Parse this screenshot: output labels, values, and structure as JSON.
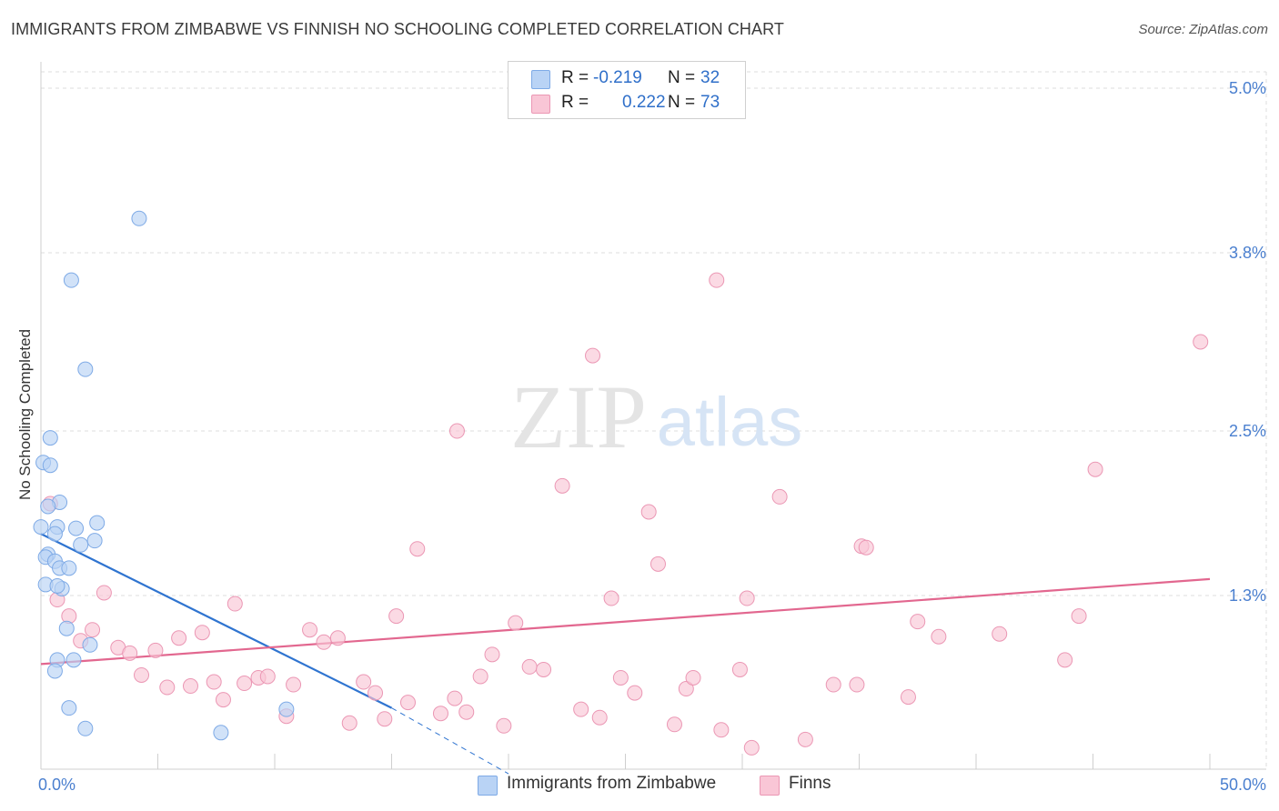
{
  "header": {
    "title": "IMMIGRANTS FROM ZIMBABWE VS FINNISH NO SCHOOLING COMPLETED CORRELATION CHART",
    "source": "Source: ZipAtlas.com"
  },
  "watermark": {
    "zip": "ZIP",
    "atlas": "atlas"
  },
  "stats_legend": [
    {
      "r_label": "R =",
      "r_value": "-0.219",
      "n_label": "N =",
      "n_value": "32"
    },
    {
      "r_label": "R =",
      "r_value": "0.222",
      "n_label": "N =",
      "n_value": "73"
    }
  ],
  "colors": {
    "zimbabwe_fill": "#b9d3f5",
    "zimbabwe_stroke": "#7eaae6",
    "zimbabwe_line": "#2f74d0",
    "finns_fill": "#f9c6d6",
    "finns_stroke": "#eb97b4",
    "finns_line": "#e2678f",
    "axis_text": "#4a7fcf",
    "grid": "#dcdcdc"
  },
  "chart_data": {
    "type": "scatter",
    "title": "IMMIGRANTS FROM ZIMBABWE VS FINNISH NO SCHOOLING COMPLETED CORRELATION CHART",
    "xlabel": "",
    "ylabel": "No Schooling Completed",
    "xlim": [
      0,
      50
    ],
    "ylim": [
      0,
      5.2
    ],
    "x_tick_labels": [
      "0.0%",
      "50.0%"
    ],
    "y_ticks": [
      1.3,
      2.5,
      3.8,
      5.0
    ],
    "y_tick_labels": [
      "1.3%",
      "2.5%",
      "3.8%",
      "5.0%"
    ],
    "grid": true,
    "legend_position": "bottom-center",
    "series": [
      {
        "name": "Immigrants from Zimbabwe",
        "r": -0.219,
        "n": 32,
        "trend": {
          "x": [
            0,
            15
          ],
          "y": [
            1.75,
            0.48
          ],
          "dashed_to": [
            20,
            0.0
          ]
        },
        "points": [
          [
            4.2,
            4.05
          ],
          [
            1.3,
            3.6
          ],
          [
            1.9,
            2.95
          ],
          [
            0.4,
            2.45
          ],
          [
            0.1,
            2.27
          ],
          [
            0.4,
            2.25
          ],
          [
            0.8,
            1.98
          ],
          [
            0.3,
            1.95
          ],
          [
            0.0,
            1.8
          ],
          [
            0.7,
            1.8
          ],
          [
            1.5,
            1.79
          ],
          [
            2.4,
            1.83
          ],
          [
            0.6,
            1.75
          ],
          [
            1.7,
            1.67
          ],
          [
            2.3,
            1.7
          ],
          [
            0.3,
            1.6
          ],
          [
            0.2,
            1.58
          ],
          [
            0.6,
            1.55
          ],
          [
            0.8,
            1.5
          ],
          [
            1.2,
            1.5
          ],
          [
            0.2,
            1.38
          ],
          [
            0.9,
            1.35
          ],
          [
            0.7,
            1.37
          ],
          [
            1.1,
            1.06
          ],
          [
            2.1,
            0.94
          ],
          [
            0.7,
            0.83
          ],
          [
            1.4,
            0.83
          ],
          [
            0.6,
            0.75
          ],
          [
            1.2,
            0.48
          ],
          [
            10.5,
            0.47
          ],
          [
            1.9,
            0.33
          ],
          [
            7.7,
            0.3
          ]
        ]
      },
      {
        "name": "Finns",
        "r": 0.222,
        "n": 73,
        "trend": {
          "x": [
            0,
            50
          ],
          "y": [
            0.8,
            1.42
          ]
        },
        "points": [
          [
            0.4,
            1.97
          ],
          [
            0.7,
            1.27
          ],
          [
            1.2,
            1.15
          ],
          [
            2.2,
            1.05
          ],
          [
            1.7,
            0.97
          ],
          [
            2.7,
            1.32
          ],
          [
            3.3,
            0.92
          ],
          [
            3.8,
            0.88
          ],
          [
            4.3,
            0.72
          ],
          [
            4.9,
            0.9
          ],
          [
            5.4,
            0.63
          ],
          [
            5.9,
            0.99
          ],
          [
            6.4,
            0.64
          ],
          [
            6.9,
            1.03
          ],
          [
            7.4,
            0.67
          ],
          [
            7.8,
            0.54
          ],
          [
            8.3,
            1.24
          ],
          [
            8.7,
            0.66
          ],
          [
            9.3,
            0.7
          ],
          [
            9.7,
            0.71
          ],
          [
            10.5,
            0.42
          ],
          [
            10.8,
            0.65
          ],
          [
            11.5,
            1.05
          ],
          [
            12.1,
            0.96
          ],
          [
            12.7,
            0.99
          ],
          [
            13.2,
            0.37
          ],
          [
            13.8,
            0.67
          ],
          [
            14.3,
            0.59
          ],
          [
            14.7,
            0.4
          ],
          [
            15.2,
            1.15
          ],
          [
            15.7,
            0.52
          ],
          [
            16.1,
            1.64
          ],
          [
            17.1,
            0.44
          ],
          [
            17.7,
            0.55
          ],
          [
            17.8,
            2.5
          ],
          [
            18.2,
            0.45
          ],
          [
            18.8,
            0.71
          ],
          [
            19.3,
            0.87
          ],
          [
            19.8,
            0.35
          ],
          [
            20.3,
            1.1
          ],
          [
            20.9,
            0.78
          ],
          [
            21.5,
            0.76
          ],
          [
            22.3,
            2.1
          ],
          [
            23.1,
            0.47
          ],
          [
            23.6,
            3.05
          ],
          [
            23.9,
            0.41
          ],
          [
            24.4,
            1.28
          ],
          [
            24.8,
            0.7
          ],
          [
            25.4,
            0.59
          ],
          [
            26.0,
            1.91
          ],
          [
            26.4,
            1.53
          ],
          [
            27.1,
            0.36
          ],
          [
            27.6,
            0.62
          ],
          [
            27.9,
            0.7
          ],
          [
            28.9,
            3.6
          ],
          [
            29.1,
            0.32
          ],
          [
            29.9,
            0.76
          ],
          [
            30.4,
            0.19
          ],
          [
            31.6,
            2.02
          ],
          [
            32.7,
            0.25
          ],
          [
            33.9,
            0.65
          ],
          [
            34.9,
            0.65
          ],
          [
            35.1,
            1.66
          ],
          [
            35.3,
            1.65
          ],
          [
            37.1,
            0.56
          ],
          [
            37.5,
            1.11
          ],
          [
            38.4,
            1.0
          ],
          [
            41.0,
            1.02
          ],
          [
            43.8,
            0.83
          ],
          [
            44.4,
            1.15
          ],
          [
            45.1,
            2.22
          ],
          [
            49.6,
            3.15
          ],
          [
            30.2,
            1.28
          ]
        ]
      }
    ]
  },
  "bottom_legend": [
    {
      "label": "Immigrants from Zimbabwe"
    },
    {
      "label": "Finns"
    }
  ]
}
